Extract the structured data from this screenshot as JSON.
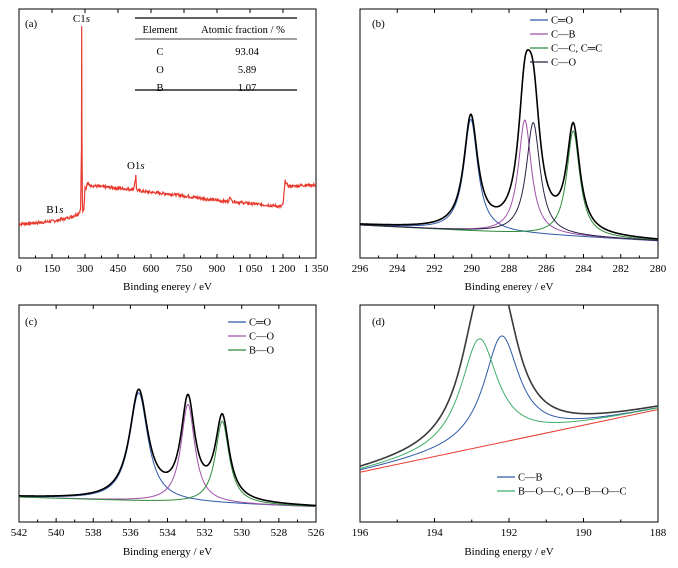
{
  "chart_data": [
    {
      "type": "line",
      "panel_label": "(a)",
      "xlabel": "Binding enerey / eV",
      "ylabel": "",
      "xlim": [
        0,
        1350
      ],
      "ylim": [
        0,
        100
      ],
      "xticks": [
        0,
        150,
        300,
        450,
        600,
        750,
        900,
        1050,
        1200,
        1350
      ],
      "xtick_labels": [
        "0",
        "150",
        "300",
        "450",
        "600",
        "750",
        "900",
        "1 050",
        "1 200",
        "1 350"
      ],
      "grid": false,
      "legend": "none",
      "series": [
        {
          "color": "#e8392e",
          "x": [
            0,
            50,
            100,
            150,
            180,
            190,
            200,
            250,
            270,
            280,
            284,
            285,
            286,
            288,
            290,
            295,
            300,
            305,
            310,
            320,
            350,
            400,
            450,
            500,
            520,
            530,
            531,
            532,
            534,
            540,
            560,
            600,
            700,
            800,
            900,
            950,
            960,
            965,
            970,
            980,
            1000,
            1050,
            1100,
            1150,
            1190,
            1200,
            1210,
            1220,
            1230,
            1250,
            1300,
            1350
          ],
          "y": [
            3,
            3.3,
            3.7,
            4.3,
            4.8,
            5.5,
            5.2,
            7,
            8,
            10,
            40,
            100,
            50,
            15,
            9,
            10,
            21,
            20,
            23,
            22,
            21.5,
            21,
            20.5,
            20,
            20,
            25,
            27,
            25,
            20,
            19.5,
            19,
            18.5,
            17.5,
            16,
            14.5,
            14,
            16,
            15,
            14,
            14,
            13.5,
            13,
            12.5,
            12,
            11.5,
            12.5,
            24,
            22,
            21.5,
            21.5,
            22,
            22
          ]
        }
      ],
      "annotations": [
        {
          "text_main": "C1",
          "text_sub": "s",
          "x": 284,
          "y": 100
        },
        {
          "text_main": "O1",
          "text_sub": "s",
          "x": 531,
          "y": 27
        },
        {
          "text_main": "B1",
          "text_sub": "s",
          "x": 190,
          "y": 5.5
        }
      ],
      "table": {
        "headers": [
          "Element",
          "Atomic fraction / %"
        ],
        "rows": [
          [
            "C",
            "93.04"
          ],
          [
            "O",
            "5.89"
          ],
          [
            "B",
            "1.07"
          ]
        ]
      }
    },
    {
      "type": "line",
      "panel_label": "(b)",
      "xlabel": "Binding enerey / eV",
      "ylabel": "",
      "xlim": [
        296,
        280
      ],
      "ylim": [
        0,
        100
      ],
      "xticks": [
        296,
        294,
        292,
        290,
        288,
        286,
        284,
        282,
        280
      ],
      "grid": false,
      "legend": "top-right",
      "baseline": {
        "x1": 296,
        "y1": 7.5,
        "x2": 280,
        "y2": 0
      },
      "envelope_color": "#000000",
      "series": [
        {
          "name": "C═O",
          "color": "#2f5aa8",
          "center": 290.05,
          "fwhm": 0.9,
          "height": 53
        },
        {
          "name": "C—B",
          "color": "#a04fa8",
          "center": 287.15,
          "fwhm": 0.85,
          "height": 54
        },
        {
          "name": "C—C, C═C",
          "color": "#2e8b3a",
          "center": 284.55,
          "fwhm": 0.85,
          "height": 50
        },
        {
          "name": "C—O",
          "color": "#2b2244",
          "center": 286.7,
          "fwhm": 0.9,
          "height": 53
        }
      ]
    },
    {
      "type": "line",
      "panel_label": "(c)",
      "xlabel": "Binding energy / eV",
      "ylabel": "",
      "xlim": [
        542,
        526
      ],
      "ylim": [
        0,
        100
      ],
      "xticks": [
        542,
        540,
        538,
        536,
        534,
        532,
        530,
        528,
        526
      ],
      "grid": false,
      "legend": "top-right",
      "baseline": {
        "x1": 542,
        "y1": 5,
        "x2": 526,
        "y2": 0
      },
      "envelope_color": "#000000",
      "series": [
        {
          "name": "C═O",
          "color": "#2f5aa8",
          "center": 535.55,
          "fwhm": 1.2,
          "height": 55
        },
        {
          "name": "C—O",
          "color": "#a04fa8",
          "center": 532.9,
          "fwhm": 0.9,
          "height": 50
        },
        {
          "name": "B—O",
          "color": "#2e8b3a",
          "center": 531.05,
          "fwhm": 0.9,
          "height": 42
        }
      ]
    },
    {
      "type": "line",
      "panel_label": "(d)",
      "xlabel": "Binding energy / eV",
      "ylabel": "",
      "xlim": [
        196,
        188
      ],
      "ylim": [
        0,
        100
      ],
      "xticks": [
        196,
        194,
        192,
        190,
        188
      ],
      "grid": false,
      "legend": "bottom-right",
      "baseline": {
        "x1": 196,
        "y1": 12,
        "x2": 188,
        "y2": 45
      },
      "baseline_color": "#e8392e",
      "envelope_color": "#3a3a3a",
      "series": [
        {
          "name": "C—B",
          "color": "#2f5aa8",
          "center": 192.2,
          "fwhm": 1.15,
          "height": 56
        },
        {
          "name": "B—O—C, O—B—O—C",
          "color": "#3fae6a",
          "center": 192.8,
          "fwhm": 1.2,
          "height": 57
        }
      ]
    }
  ]
}
